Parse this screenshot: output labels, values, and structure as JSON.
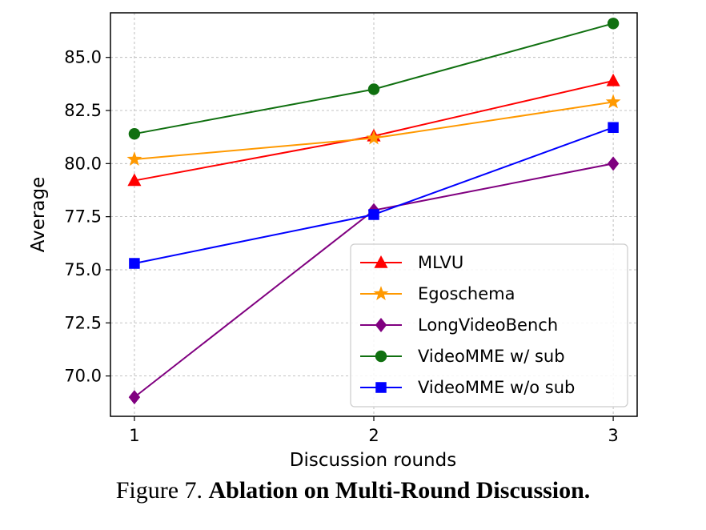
{
  "chart_data": {
    "type": "line",
    "xlabel": "Discussion rounds",
    "ylabel": "Average",
    "x": [
      1,
      2,
      3
    ],
    "xticks": [
      "1",
      "2",
      "3"
    ],
    "xlim": [
      0.9,
      3.1
    ],
    "ylim": [
      68.1,
      87.1
    ],
    "yticks": [
      "70.0",
      "72.5",
      "75.0",
      "77.5",
      "80.0",
      "82.5",
      "85.0"
    ],
    "ytick_values": [
      70.0,
      72.5,
      75.0,
      77.5,
      80.0,
      82.5,
      85.0
    ],
    "grid": true,
    "legend_position": "lower-right",
    "series": [
      {
        "name": "MLVU",
        "values": [
          79.2,
          81.3,
          83.9
        ],
        "color": "#ff0000",
        "marker": "triangle"
      },
      {
        "name": "Egoschema",
        "values": [
          80.2,
          81.2,
          82.9
        ],
        "color": "#ff9900",
        "marker": "star"
      },
      {
        "name": "LongVideoBench",
        "values": [
          69.0,
          77.8,
          80.0
        ],
        "color": "#800080",
        "marker": "diamond"
      },
      {
        "name": "VideoMME w/ sub",
        "values": [
          81.4,
          83.5,
          86.6
        ],
        "color": "#107010",
        "marker": "circle"
      },
      {
        "name": "VideoMME w/o sub",
        "values": [
          75.3,
          77.6,
          81.7
        ],
        "color": "#0000ff",
        "marker": "square"
      }
    ]
  },
  "caption": {
    "prefix": "Figure 7.",
    "title": "Ablation on Multi-Round Discussion."
  }
}
